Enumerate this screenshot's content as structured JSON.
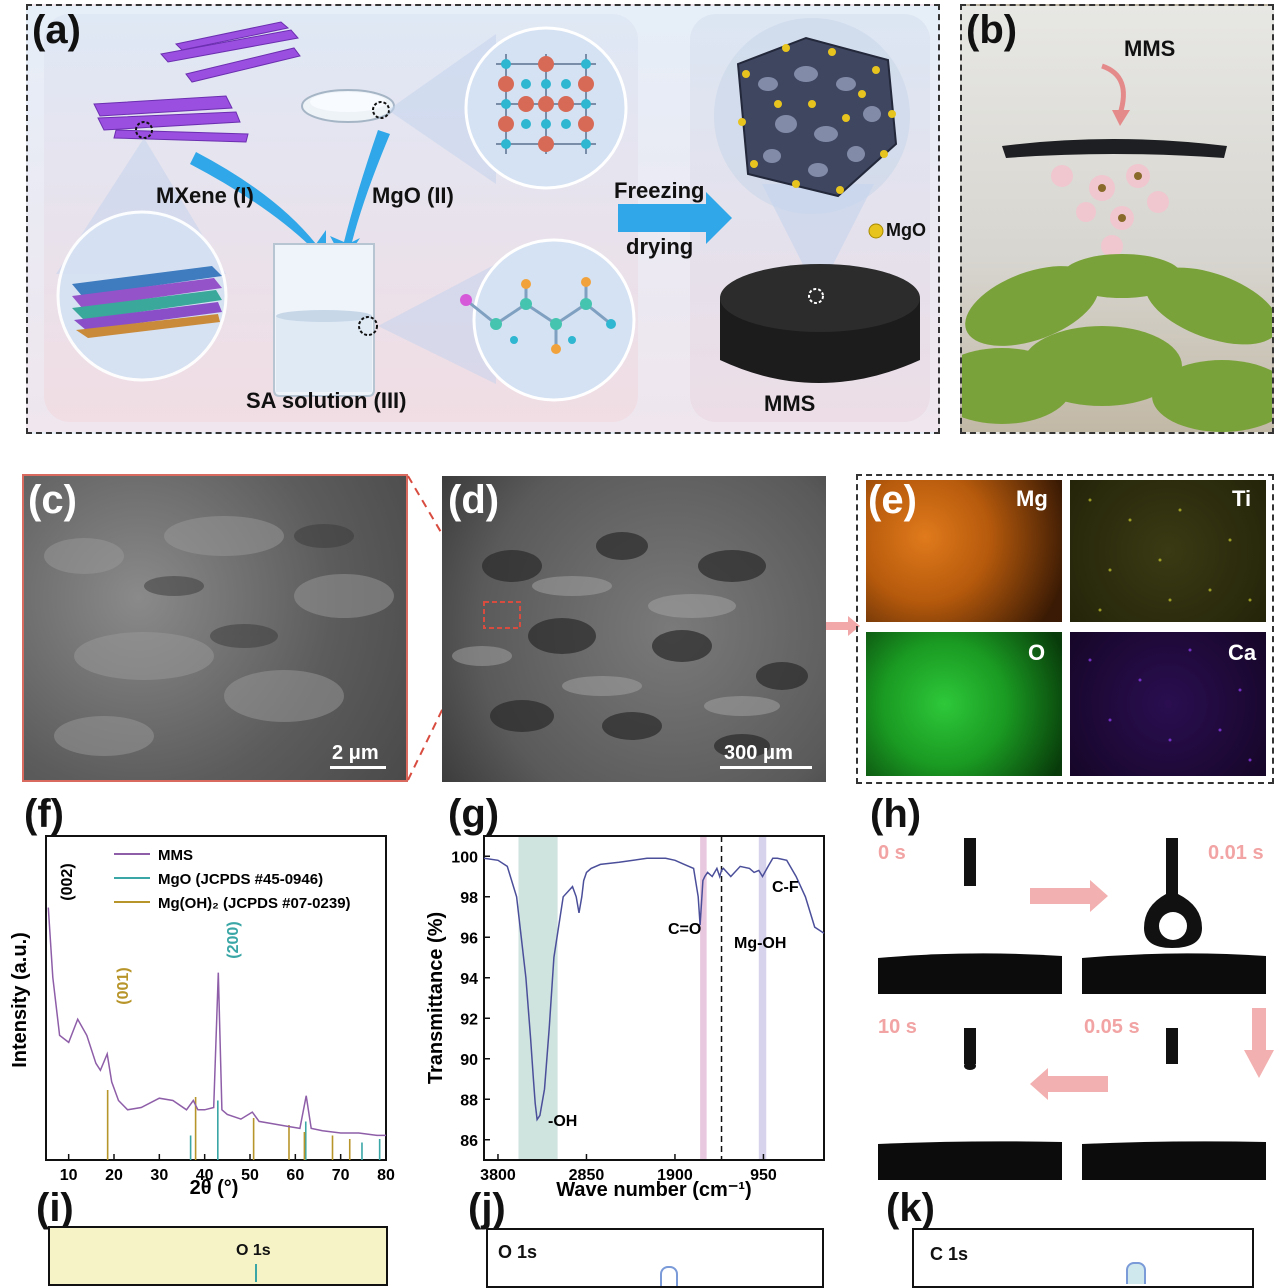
{
  "panels": {
    "a": {
      "label": "(a)",
      "mxene": "MXene (I)",
      "mgo": "MgO (II)",
      "sa": "SA solution (III)",
      "freezing": "Freezing",
      "drying": "drying",
      "mgo_legend": "MgO",
      "mms": "MMS"
    },
    "b": {
      "label": "(b)",
      "mms": "MMS"
    },
    "c": {
      "label": "(c)",
      "scale": "2 μm"
    },
    "d": {
      "label": "(d)",
      "scale": "300 μm"
    },
    "e": {
      "label": "(e)",
      "maps": [
        "Mg",
        "Ti",
        "O",
        "Ca"
      ]
    },
    "f": {
      "label": "(f)"
    },
    "g": {
      "label": "(g)"
    },
    "h": {
      "label": "(h)",
      "t0": "0 s",
      "t1": "0.01 s",
      "t2": "0.05 s",
      "t3": "10 s"
    },
    "i": {
      "label": "(i)",
      "peak": "O 1s"
    },
    "j": {
      "label": "(j)",
      "title": "O 1s"
    },
    "k": {
      "label": "(k)",
      "title": "C 1s"
    }
  },
  "colors": {
    "mms": "#8e5ea8",
    "mgo": "#3aa6a6",
    "mgoh2": "#b8952a",
    "ftir_line": "#4b4f9a",
    "oh_band": "#cfe3df",
    "co_band": "#e8c8de",
    "mgoh_band": "#d8d3ec",
    "mg_map": "#c2620c",
    "ti_map": "#b2b12a",
    "o_map": "#1fae2a",
    "ca_map": "#6b1fd4"
  },
  "chart_data": [
    {
      "type": "line",
      "panel": "f",
      "xlabel": "2θ (°)",
      "ylabel": "Intensity (a.u.)",
      "xlim": [
        5,
        80
      ],
      "xticks": [
        10,
        20,
        30,
        40,
        50,
        60,
        70,
        80
      ],
      "legend": [
        "MMS",
        "MgO (JCPDS #45-0946)",
        "Mg(OH)₂ (JCPDS #07-0239)"
      ],
      "annotations": [
        "(002)",
        "(001)",
        "(200)"
      ],
      "series": [
        {
          "name": "MMS",
          "x": [
            5.5,
            6.5,
            8,
            10,
            12,
            14,
            16,
            17,
            18.5,
            19.5,
            21,
            23,
            26,
            30,
            33,
            36,
            37.5,
            38.5,
            40,
            42,
            43,
            43.8,
            45,
            48,
            50.5,
            52,
            55,
            58,
            61,
            62.4,
            63.5,
            66,
            70,
            74,
            78,
            80
          ],
          "y": [
            100,
            70,
            45,
            42,
            52,
            45,
            33,
            30,
            37,
            25,
            17,
            13,
            14,
            18,
            17,
            13,
            17,
            13,
            13,
            14,
            72,
            13,
            11,
            9,
            12,
            8,
            7,
            6,
            5,
            19,
            5,
            4,
            3,
            3,
            2,
            2
          ]
        }
      ],
      "sticks": [
        {
          "name": "MgO (JCPDS #45-0946)",
          "x": [
            36.9,
            42.9,
            62.3,
            74.7,
            78.6
          ],
          "h": [
            0.35,
            0.85,
            0.55,
            0.25,
            0.3
          ]
        },
        {
          "name": "Mg(OH)₂ (JCPDS #07-0239)",
          "x": [
            18.6,
            38.0,
            50.8,
            58.6,
            62.0,
            68.2,
            72.0
          ],
          "h": [
            1.0,
            0.9,
            0.6,
            0.5,
            0.4,
            0.35,
            0.3
          ]
        }
      ]
    },
    {
      "type": "line",
      "panel": "g",
      "xlabel": "Wave number (cm⁻¹)",
      "ylabel": "Transmittance (%)",
      "ylim": [
        85,
        101
      ],
      "xlim": [
        3950,
        300
      ],
      "xticks": [
        3800,
        2850,
        1900,
        950
      ],
      "yticks": [
        86,
        88,
        90,
        92,
        94,
        96,
        98,
        100
      ],
      "annotations": [
        "-OH",
        "C=O",
        "Mg-OH",
        "C-F"
      ],
      "bands": [
        [
          3580,
          3160
        ],
        [
          1630,
          1560
        ],
        [
          920,
          1000
        ]
      ],
      "series": [
        {
          "name": "FTIR",
          "x": [
            3950,
            3800,
            3700,
            3600,
            3500,
            3450,
            3420,
            3400,
            3380,
            3350,
            3300,
            3250,
            3200,
            3100,
            3000,
            2960,
            2930,
            2900,
            2880,
            2850,
            2800,
            2700,
            2500,
            2200,
            2000,
            1900,
            1800,
            1700,
            1650,
            1630,
            1600,
            1580,
            1550,
            1500,
            1450,
            1420,
            1400,
            1380,
            1300,
            1200,
            1100,
            1050,
            1000,
            960,
            900,
            850,
            800,
            700,
            600,
            500,
            400,
            300
          ],
          "y": [
            99.9,
            99.8,
            99.5,
            98.0,
            94.0,
            91.0,
            89.0,
            87.8,
            87.0,
            87.2,
            88.5,
            91.5,
            95.0,
            98.0,
            98.5,
            98.0,
            97.2,
            98.0,
            98.8,
            99.2,
            99.4,
            99.6,
            99.7,
            99.9,
            99.9,
            99.8,
            99.6,
            99.4,
            98.0,
            96.6,
            98.8,
            99.0,
            99.2,
            99.0,
            99.4,
            99.0,
            99.3,
            99.4,
            99.0,
            99.5,
            99.4,
            99.2,
            99.3,
            99.0,
            99.5,
            99.9,
            99.9,
            99.8,
            99.0,
            98.0,
            96.5,
            96.2
          ]
        }
      ]
    }
  ]
}
